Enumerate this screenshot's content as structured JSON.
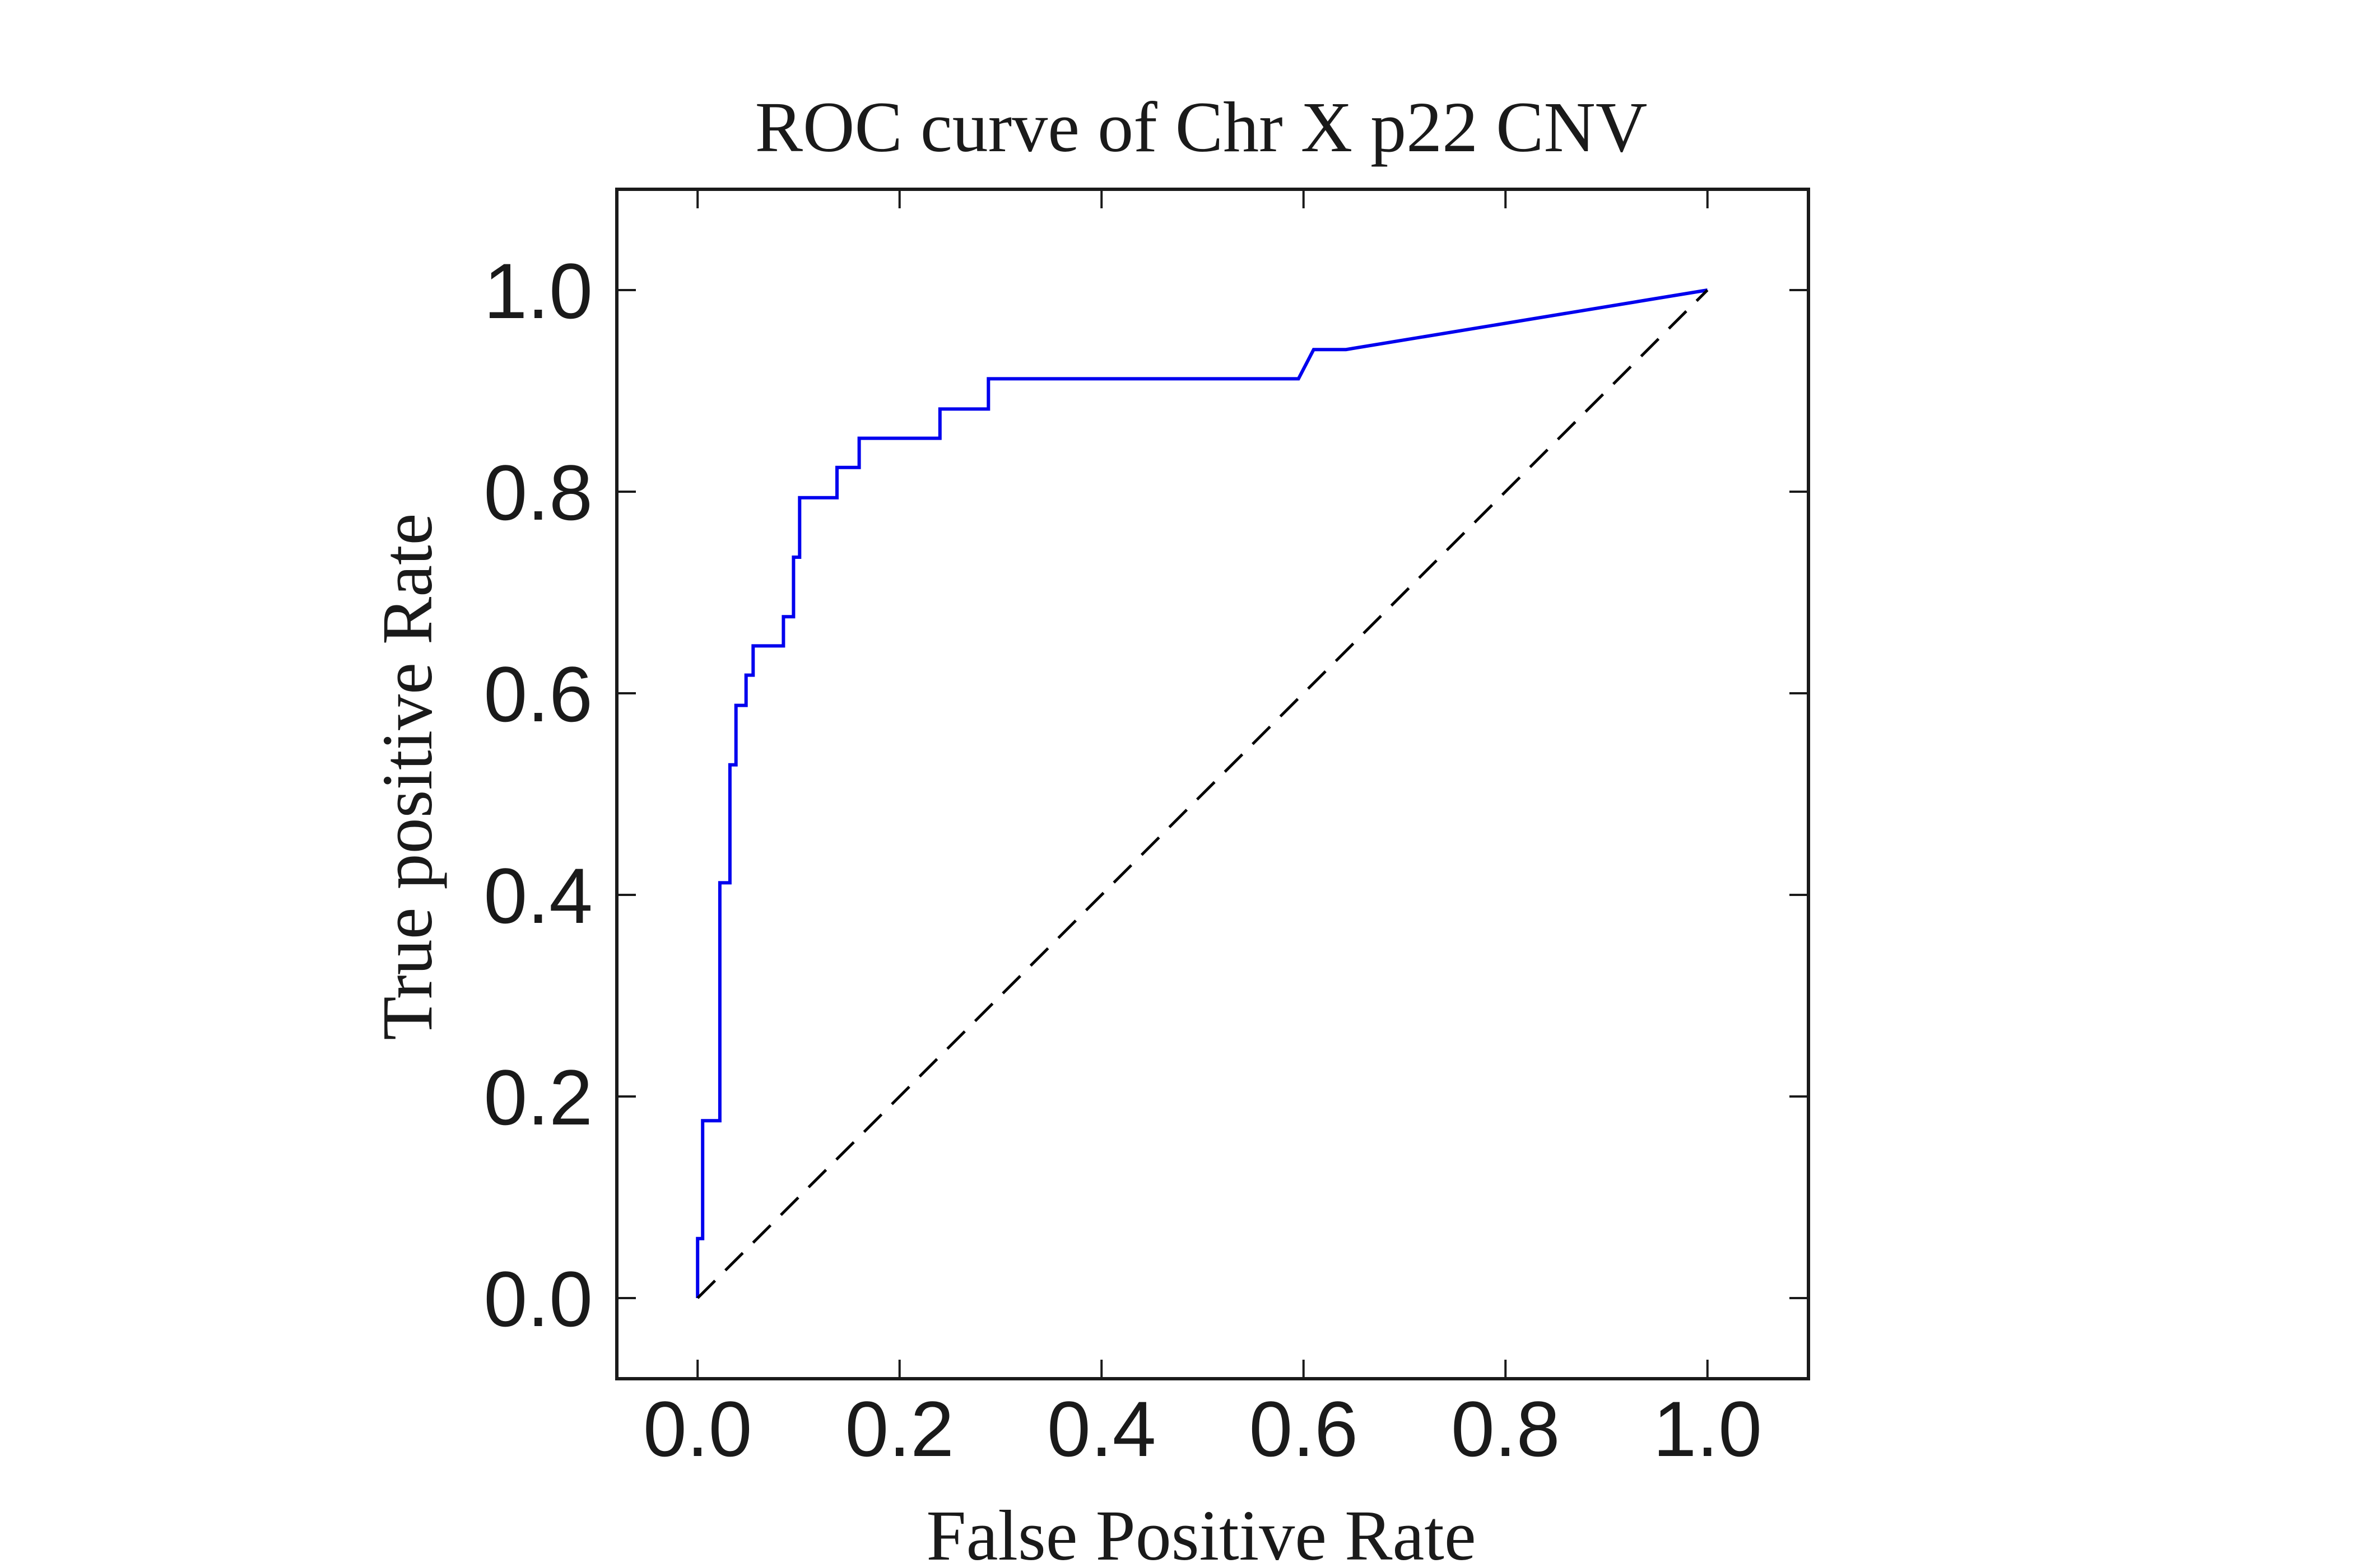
{
  "chart_data": {
    "type": "line",
    "title": "ROC curve of Chr X p22 CNV",
    "xlabel": "False Positive Rate",
    "ylabel": "True positive Rate",
    "xlim": [
      -0.08,
      1.1
    ],
    "ylim": [
      -0.08,
      1.1
    ],
    "xticks": [
      "0.0",
      "0.2",
      "0.4",
      "0.6",
      "0.8",
      "1.0"
    ],
    "yticks": [
      "0.0",
      "0.2",
      "0.4",
      "0.6",
      "0.8",
      "1.0"
    ],
    "grid": false,
    "legend": "none",
    "series": [
      {
        "color": "#0000ee",
        "style": "solid",
        "x": [
          0.0,
          0.0,
          0.005,
          0.005,
          0.022,
          0.022,
          0.032,
          0.032,
          0.038,
          0.038,
          0.048,
          0.048,
          0.055,
          0.055,
          0.085,
          0.085,
          0.095,
          0.095,
          0.101,
          0.101,
          0.138,
          0.138,
          0.16,
          0.16,
          0.24,
          0.24,
          0.288,
          0.288,
          0.595,
          0.61,
          0.642,
          1.0
        ],
        "y": [
          0.0,
          0.059,
          0.059,
          0.176,
          0.176,
          0.412,
          0.412,
          0.529,
          0.529,
          0.588,
          0.588,
          0.618,
          0.618,
          0.647,
          0.647,
          0.676,
          0.676,
          0.735,
          0.735,
          0.794,
          0.794,
          0.824,
          0.824,
          0.853,
          0.853,
          0.882,
          0.882,
          0.912,
          0.912,
          0.941,
          0.941,
          1.0
        ]
      },
      {
        "color": "#000000",
        "style": "dashed",
        "x": [
          0.0,
          1.0
        ],
        "y": [
          0.0,
          1.0
        ]
      }
    ]
  }
}
